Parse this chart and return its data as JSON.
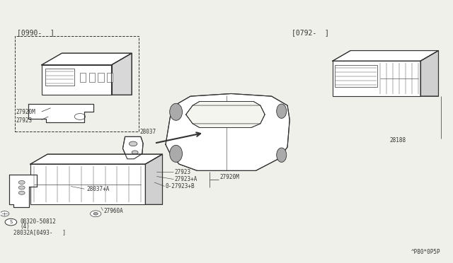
{
  "bg_color": "#f0f0eb",
  "line_color": "#333333",
  "watermark": "^P80*0P5P",
  "bracket_top_left": "[0990-  ]",
  "bracket_top_right": "[0792-  ]",
  "label_bottom_left_1": "08320-50812",
  "label_bottom_left_2": "(4)",
  "label_bottom_left_unit": "28032A[0493-   ]"
}
